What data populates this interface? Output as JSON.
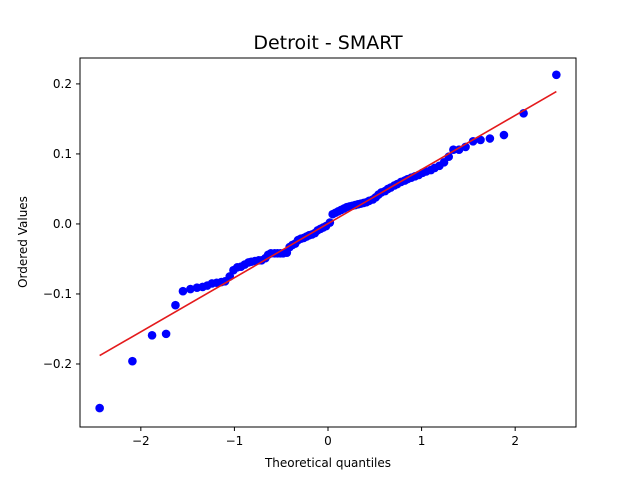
{
  "chart_data": {
    "type": "scatter",
    "title": "Detroit - SMART",
    "xlabel": "Theoretical quantiles",
    "ylabel": "Ordered Values",
    "xlim": [
      -2.65,
      2.65
    ],
    "ylim": [
      -0.29,
      0.237
    ],
    "xticks": [
      -2,
      -1,
      0,
      1,
      2
    ],
    "xtick_labels": [
      "−2",
      "−1",
      "0",
      "1",
      "2"
    ],
    "yticks": [
      -0.2,
      -0.1,
      0.0,
      0.1,
      0.2
    ],
    "ytick_labels": [
      "−0.2",
      "−0.1",
      "0.0",
      "0.1",
      "0.2"
    ],
    "grid": false,
    "series": [
      {
        "marker_color": "#0000ff",
        "points": [
          [
            -2.44,
            -0.263
          ],
          [
            -2.09,
            -0.196
          ],
          [
            -1.88,
            -0.159
          ],
          [
            -1.73,
            -0.157
          ],
          [
            -1.63,
            -0.116
          ],
          [
            -1.55,
            -0.096
          ],
          [
            -1.47,
            -0.093
          ],
          [
            -1.4,
            -0.091
          ],
          [
            -1.34,
            -0.09
          ],
          [
            -1.29,
            -0.088
          ],
          [
            -1.24,
            -0.085
          ],
          [
            -1.19,
            -0.084
          ],
          [
            -1.14,
            -0.083
          ],
          [
            -1.1,
            -0.082
          ],
          [
            -1.05,
            -0.075
          ],
          [
            -1.01,
            -0.066
          ],
          [
            -0.97,
            -0.062
          ],
          [
            -0.93,
            -0.061
          ],
          [
            -0.89,
            -0.058
          ],
          [
            -0.85,
            -0.055
          ],
          [
            -0.82,
            -0.054
          ],
          [
            -0.78,
            -0.053
          ],
          [
            -0.74,
            -0.052
          ],
          [
            -0.71,
            -0.052
          ],
          [
            -0.67,
            -0.049
          ],
          [
            -0.64,
            -0.044
          ],
          [
            -0.61,
            -0.042
          ],
          [
            -0.57,
            -0.042
          ],
          [
            -0.54,
            -0.042
          ],
          [
            -0.51,
            -0.042
          ],
          [
            -0.48,
            -0.042
          ],
          [
            -0.44,
            -0.041
          ],
          [
            -0.41,
            -0.033
          ],
          [
            -0.38,
            -0.03
          ],
          [
            -0.35,
            -0.028
          ],
          [
            -0.32,
            -0.023
          ],
          [
            -0.29,
            -0.021
          ],
          [
            -0.26,
            -0.02
          ],
          [
            -0.23,
            -0.018
          ],
          [
            -0.2,
            -0.016
          ],
          [
            -0.17,
            -0.015
          ],
          [
            -0.14,
            -0.013
          ],
          [
            -0.11,
            -0.009
          ],
          [
            -0.08,
            -0.007
          ],
          [
            -0.05,
            -0.005
          ],
          [
            -0.02,
            -0.003
          ],
          [
            0.02,
            0.002
          ],
          [
            0.05,
            0.014
          ],
          [
            0.08,
            0.016
          ],
          [
            0.11,
            0.018
          ],
          [
            0.14,
            0.02
          ],
          [
            0.17,
            0.022
          ],
          [
            0.2,
            0.024
          ],
          [
            0.23,
            0.025
          ],
          [
            0.26,
            0.026
          ],
          [
            0.29,
            0.027
          ],
          [
            0.32,
            0.028
          ],
          [
            0.35,
            0.029
          ],
          [
            0.38,
            0.03
          ],
          [
            0.41,
            0.031
          ],
          [
            0.44,
            0.033
          ],
          [
            0.48,
            0.035
          ],
          [
            0.51,
            0.038
          ],
          [
            0.54,
            0.042
          ],
          [
            0.57,
            0.045
          ],
          [
            0.61,
            0.047
          ],
          [
            0.64,
            0.05
          ],
          [
            0.67,
            0.052
          ],
          [
            0.71,
            0.055
          ],
          [
            0.74,
            0.057
          ],
          [
            0.78,
            0.06
          ],
          [
            0.82,
            0.062
          ],
          [
            0.85,
            0.064
          ],
          [
            0.89,
            0.066
          ],
          [
            0.93,
            0.068
          ],
          [
            0.97,
            0.07
          ],
          [
            1.01,
            0.073
          ],
          [
            1.05,
            0.075
          ],
          [
            1.1,
            0.077
          ],
          [
            1.14,
            0.08
          ],
          [
            1.19,
            0.083
          ],
          [
            1.24,
            0.088
          ],
          [
            1.29,
            0.096
          ],
          [
            1.34,
            0.106
          ],
          [
            1.4,
            0.106
          ],
          [
            1.47,
            0.11
          ],
          [
            1.55,
            0.118
          ],
          [
            1.63,
            0.12
          ],
          [
            1.73,
            0.122
          ],
          [
            1.88,
            0.127
          ],
          [
            2.09,
            0.158
          ],
          [
            2.44,
            0.213
          ]
        ]
      },
      {
        "kind": "fit-line",
        "line_color": "#e41a1c",
        "x": [
          -2.44,
          2.44
        ],
        "y": [
          -0.188,
          0.189
        ]
      }
    ]
  }
}
